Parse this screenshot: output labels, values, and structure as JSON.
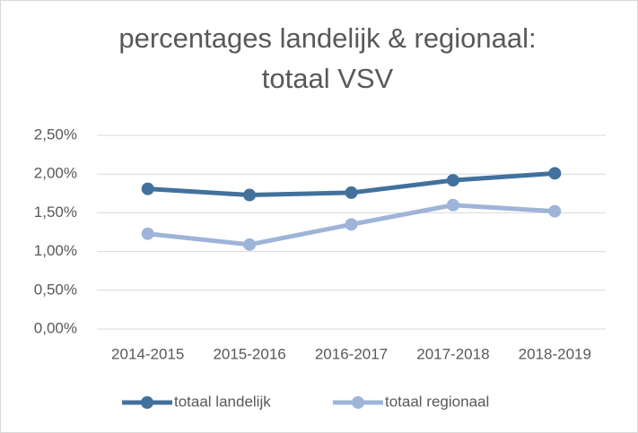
{
  "chart_data": {
    "type": "line",
    "title": [
      "percentages landelijk & regionaal:",
      "totaal VSV"
    ],
    "categories": [
      "2014-2015",
      "2015-2016",
      "2016-2017",
      "2017-2018",
      "2018-2019"
    ],
    "series": [
      {
        "name": "totaal landelijk",
        "color": "#41719c",
        "values": [
          1.81,
          1.73,
          1.76,
          1.92,
          2.01
        ]
      },
      {
        "name": "totaal regionaal",
        "color": "#9eb4d8",
        "values": [
          1.23,
          1.09,
          1.35,
          1.6,
          1.52
        ]
      }
    ],
    "ylim": [
      0,
      2.5
    ],
    "yticks": [
      {
        "value": 0,
        "label": "0,00%"
      },
      {
        "value": 0.5,
        "label": "0,50%"
      },
      {
        "value": 1,
        "label": "1,00%"
      },
      {
        "value": 1.5,
        "label": "1,50%"
      },
      {
        "value": 2,
        "label": "2,00%"
      },
      {
        "value": 2.5,
        "label": "2,50%"
      }
    ],
    "grid": true,
    "legend": "bottom"
  }
}
